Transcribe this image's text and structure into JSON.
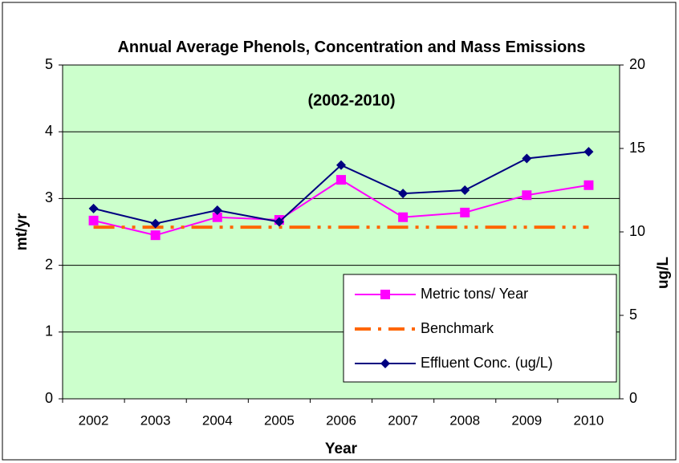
{
  "chart_data": {
    "type": "line",
    "title": "Annual Average Phenols, Concentration and Mass Emissions",
    "subtitle": "(2002-2010)",
    "x_label": "Year",
    "y_label": "mt/yr",
    "y2_label": "ug/L",
    "categories": [
      "2002",
      "2003",
      "2004",
      "2005",
      "2006",
      "2007",
      "2008",
      "2009",
      "2010"
    ],
    "ylim": [
      0,
      5
    ],
    "yticks": [
      0,
      1,
      2,
      3,
      4,
      5
    ],
    "y2lim": [
      0,
      20
    ],
    "y2ticks": [
      0,
      5,
      10,
      15,
      20
    ],
    "grid": true,
    "legend": "lower right",
    "series": [
      {
        "name": "Metric tons/ Year",
        "color": "#ff00ff",
        "marker": "square",
        "values": [
          2.67,
          2.45,
          2.72,
          2.68,
          3.28,
          2.72,
          2.79,
          3.05,
          3.2
        ]
      },
      {
        "name": "Benchmark",
        "color": "#ff6600",
        "marker": "none",
        "dashed": true,
        "values": [
          2.57,
          2.57,
          2.57,
          2.57,
          2.57,
          2.57,
          2.57,
          2.57,
          2.57
        ]
      },
      {
        "name": "Effluent Conc. (ug/L)",
        "color": "#000080",
        "marker": "diamond",
        "axis": "y2",
        "values": [
          11.4,
          10.5,
          11.3,
          10.6,
          14.0,
          12.3,
          12.5,
          14.4,
          14.8
        ]
      }
    ]
  }
}
